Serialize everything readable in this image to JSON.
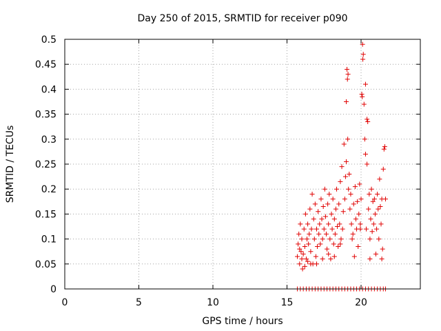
{
  "chart_data": {
    "type": "scatter",
    "title": "Day 250 of 2015, SRMTID for receiver p090",
    "xlabel": "GPS time / hours",
    "ylabel": "SRMTID / TECUs",
    "xlim": [
      0,
      24
    ],
    "ylim": [
      0,
      0.5
    ],
    "xticks": [
      0,
      5,
      10,
      15,
      20
    ],
    "xtick_labels": [
      "0",
      "5",
      "10",
      "15",
      "20"
    ],
    "yticks": [
      0,
      0.05,
      0.1,
      0.15,
      0.2,
      0.25,
      0.3,
      0.35,
      0.4,
      0.45,
      0.5
    ],
    "ytick_labels": [
      "0",
      "0.05",
      "0.1",
      "0.15",
      "0.2",
      "0.25",
      "0.3",
      "0.35",
      "0.4",
      "0.45",
      "0.5"
    ],
    "grid": true,
    "marker": "+",
    "color": "#e00000",
    "series": [
      {
        "name": "SRMTID",
        "points": [
          [
            15.7,
            0.065
          ],
          [
            15.75,
            0.09
          ],
          [
            15.8,
            0.11
          ],
          [
            15.85,
            0.05
          ],
          [
            15.9,
            0.13
          ],
          [
            15.95,
            0.075
          ],
          [
            16.0,
            0.1
          ],
          [
            16.05,
            0.04
          ],
          [
            16.1,
            0.07
          ],
          [
            16.15,
            0.12
          ],
          [
            16.2,
            0.085
          ],
          [
            16.25,
            0.15
          ],
          [
            16.3,
            0.06
          ],
          [
            16.35,
            0.1
          ],
          [
            16.4,
            0.13
          ],
          [
            16.45,
            0.09
          ],
          [
            16.5,
            0.11
          ],
          [
            16.55,
            0.16
          ],
          [
            16.6,
            0.075
          ],
          [
            16.65,
            0.12
          ],
          [
            16.7,
            0.19
          ],
          [
            16.75,
            0.05
          ],
          [
            16.8,
            0.14
          ],
          [
            16.85,
            0.1
          ],
          [
            16.9,
            0.17
          ],
          [
            16.95,
            0.065
          ],
          [
            17.0,
            0.12
          ],
          [
            17.05,
            0.085
          ],
          [
            17.1,
            0.155
          ],
          [
            17.15,
            0.11
          ],
          [
            17.2,
            0.13
          ],
          [
            17.25,
            0.09
          ],
          [
            17.3,
            0.18
          ],
          [
            17.35,
            0.14
          ],
          [
            17.4,
            0.1
          ],
          [
            17.45,
            0.165
          ],
          [
            17.5,
            0.12
          ],
          [
            17.55,
            0.2
          ],
          [
            17.6,
            0.145
          ],
          [
            17.65,
            0.11
          ],
          [
            17.7,
            0.08
          ],
          [
            17.75,
            0.17
          ],
          [
            17.8,
            0.13
          ],
          [
            17.85,
            0.19
          ],
          [
            17.9,
            0.1
          ],
          [
            17.95,
            0.06
          ],
          [
            18.0,
            0.15
          ],
          [
            18.05,
            0.12
          ],
          [
            18.1,
            0.18
          ],
          [
            18.15,
            0.09
          ],
          [
            18.2,
            0.14
          ],
          [
            18.25,
            0.11
          ],
          [
            18.3,
            0.16
          ],
          [
            18.35,
            0.2
          ],
          [
            18.4,
            0.125
          ],
          [
            18.45,
            0.085
          ],
          [
            18.5,
            0.17
          ],
          [
            18.55,
            0.13
          ],
          [
            18.6,
            0.215
          ],
          [
            18.65,
            0.1
          ],
          [
            18.7,
            0.245
          ],
          [
            18.75,
            0.12
          ],
          [
            18.8,
            0.155
          ],
          [
            18.85,
            0.29
          ],
          [
            18.9,
            0.18
          ],
          [
            18.95,
            0.225
          ],
          [
            19.0,
            0.255
          ],
          [
            19.05,
            0.44
          ],
          [
            19.1,
            0.3
          ],
          [
            19.15,
            0.2
          ],
          [
            19.2,
            0.23
          ],
          [
            19.25,
            0.16
          ],
          [
            19.3,
            0.19
          ],
          [
            19.35,
            0.13
          ],
          [
            19.4,
            0.1
          ],
          [
            19.45,
            0.11
          ],
          [
            19.5,
            0.17
          ],
          [
            19.55,
            0.065
          ],
          [
            19.6,
            0.205
          ],
          [
            19.65,
            0.14
          ],
          [
            19.7,
            0.12
          ],
          [
            19.75,
            0.175
          ],
          [
            19.8,
            0.085
          ],
          [
            19.85,
            0.15
          ],
          [
            19.9,
            0.21
          ],
          [
            19.95,
            0.13
          ],
          [
            20.0,
            0.18
          ],
          [
            20.05,
            0.39
          ],
          [
            20.1,
            0.49
          ],
          [
            20.15,
            0.47
          ],
          [
            20.2,
            0.37
          ],
          [
            20.25,
            0.3
          ],
          [
            20.3,
            0.27
          ],
          [
            20.35,
            0.12
          ],
          [
            20.4,
            0.25
          ],
          [
            20.45,
            0.335
          ],
          [
            20.5,
            0.16
          ],
          [
            20.55,
            0.19
          ],
          [
            20.6,
            0.1
          ],
          [
            20.65,
            0.14
          ],
          [
            20.7,
            0.2
          ],
          [
            20.75,
            0.115
          ],
          [
            20.8,
            0.175
          ],
          [
            20.85,
            0.13
          ],
          [
            20.9,
            0.18
          ],
          [
            20.95,
            0.15
          ],
          [
            21.0,
            0.07
          ],
          [
            21.05,
            0.12
          ],
          [
            21.1,
            0.19
          ],
          [
            21.15,
            0.16
          ],
          [
            21.2,
            0.1
          ],
          [
            21.25,
            0.22
          ],
          [
            21.3,
            0.165
          ],
          [
            21.35,
            0.13
          ],
          [
            21.4,
            0.18
          ],
          [
            21.45,
            0.08
          ],
          [
            21.5,
            0.24
          ],
          [
            21.55,
            0.28
          ],
          [
            21.6,
            0.285
          ],
          [
            21.65,
            0.18
          ],
          [
            15.85,
            0.08
          ],
          [
            16.0,
            0.06
          ],
          [
            16.2,
            0.045
          ],
          [
            16.4,
            0.055
          ],
          [
            16.6,
            0.05
          ],
          [
            17.0,
            0.05
          ],
          [
            17.4,
            0.06
          ],
          [
            17.8,
            0.07
          ],
          [
            18.2,
            0.065
          ],
          [
            18.6,
            0.09
          ],
          [
            19.0,
            0.375
          ],
          [
            19.08,
            0.42
          ],
          [
            19.12,
            0.43
          ],
          [
            20.08,
            0.385
          ],
          [
            20.12,
            0.46
          ],
          [
            20.3,
            0.41
          ],
          [
            20.4,
            0.34
          ],
          [
            19.95,
            0.12
          ],
          [
            20.6,
            0.06
          ],
          [
            21.4,
            0.06
          ],
          [
            15.7,
            0
          ],
          [
            15.9,
            0
          ],
          [
            16.1,
            0
          ],
          [
            16.3,
            0
          ],
          [
            16.5,
            0
          ],
          [
            16.7,
            0
          ],
          [
            16.9,
            0
          ],
          [
            17.1,
            0
          ],
          [
            17.3,
            0
          ],
          [
            17.5,
            0
          ],
          [
            17.7,
            0
          ],
          [
            17.9,
            0
          ],
          [
            18.1,
            0
          ],
          [
            18.3,
            0
          ],
          [
            18.5,
            0
          ],
          [
            18.7,
            0
          ],
          [
            18.9,
            0
          ],
          [
            19.1,
            0
          ],
          [
            19.3,
            0
          ],
          [
            19.5,
            0
          ],
          [
            19.7,
            0
          ],
          [
            19.9,
            0
          ],
          [
            20.1,
            0
          ],
          [
            20.3,
            0
          ],
          [
            20.5,
            0
          ],
          [
            20.7,
            0
          ],
          [
            20.9,
            0
          ],
          [
            21.1,
            0
          ],
          [
            21.3,
            0
          ],
          [
            21.5,
            0
          ],
          [
            21.65,
            0
          ]
        ]
      }
    ]
  }
}
